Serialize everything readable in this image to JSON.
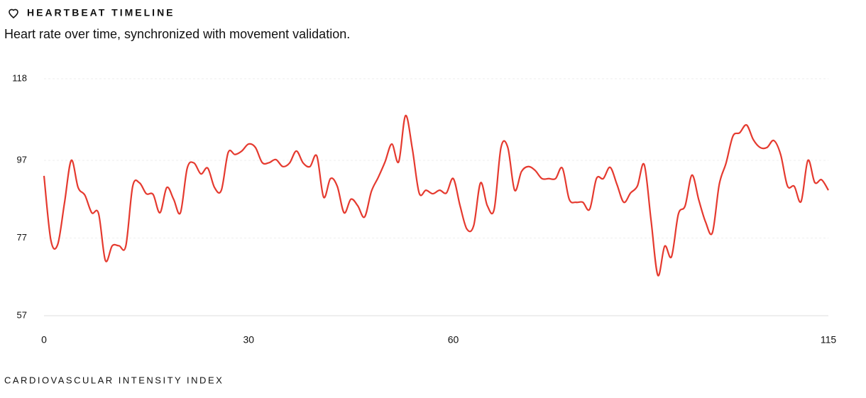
{
  "header": {
    "title": "HEARTBEAT TIMELINE",
    "subtitle": "Heart rate over time, synchronized with movement validation."
  },
  "chart_data": {
    "type": "line",
    "x": [
      0,
      1,
      2,
      3,
      4,
      5,
      6,
      7,
      8,
      9,
      10,
      11,
      12,
      13,
      14,
      15,
      16,
      17,
      18,
      19,
      20,
      21,
      22,
      23,
      24,
      25,
      26,
      27,
      28,
      29,
      30,
      31,
      32,
      33,
      34,
      35,
      36,
      37,
      38,
      39,
      40,
      41,
      42,
      43,
      44,
      45,
      46,
      47,
      48,
      49,
      50,
      51,
      52,
      53,
      54,
      55,
      56,
      57,
      58,
      59,
      60,
      61,
      62,
      63,
      64,
      65,
      66,
      67,
      68,
      69,
      70,
      71,
      72,
      73,
      74,
      75,
      76,
      77,
      78,
      79,
      80,
      81,
      82,
      83,
      84,
      85,
      86,
      87,
      88,
      89,
      90,
      91,
      92,
      93,
      94,
      95,
      96,
      97,
      98,
      99,
      100,
      101,
      102,
      103,
      104,
      105,
      106,
      107,
      108,
      109,
      110,
      111,
      112,
      113,
      114,
      115
    ],
    "series": [
      {
        "color": "#e53a2f",
        "values": [
          93,
          76.5,
          75.3,
          86,
          97,
          90,
          88,
          83.5,
          83.3,
          71.2,
          75,
          75,
          75,
          90.3,
          91.2,
          88.4,
          88.2,
          83.5,
          90,
          87,
          83.5,
          95,
          96.3,
          93.5,
          95,
          90,
          89.3,
          99,
          98.5,
          99.4,
          101.2,
          100.3,
          96.4,
          96.4,
          97.2,
          95.4,
          96.3,
          99.4,
          96.3,
          95.4,
          98.1,
          87.5,
          92.3,
          90.3,
          83.5,
          87,
          85.3,
          82.4,
          89,
          92.6,
          96.6,
          101.2,
          96.6,
          108.5,
          100,
          88.6,
          89.3,
          88.4,
          89.3,
          88.6,
          92.3,
          85.3,
          79.3,
          80.2,
          91.2,
          85.3,
          84.4,
          100.3,
          100.3,
          89.3,
          94.1,
          95.4,
          94.4,
          92.3,
          92.3,
          92.3,
          95,
          87,
          86.2,
          86.2,
          84.4,
          92.3,
          92.3,
          95.2,
          90.8,
          86.2,
          88.6,
          90.4,
          95.9,
          81.6,
          67.4,
          74.9,
          72.2,
          83.1,
          85.3,
          93.2,
          86.8,
          81.1,
          78.4,
          90.8,
          96.3,
          103.2,
          104.1,
          106.1,
          102.3,
          100.3,
          100.3,
          102.1,
          98.5,
          90.4,
          90.3,
          86.4,
          97,
          91.3,
          92,
          89.3
        ]
      }
    ],
    "xlim": [
      0,
      115
    ],
    "xticks": [
      0,
      30,
      60,
      115
    ],
    "ylim": [
      57,
      118
    ],
    "yticks": [
      57,
      77,
      97,
      118
    ],
    "grid": true
  },
  "footer": {
    "label": "CARDIOVASCULAR INTENSITY INDEX"
  }
}
